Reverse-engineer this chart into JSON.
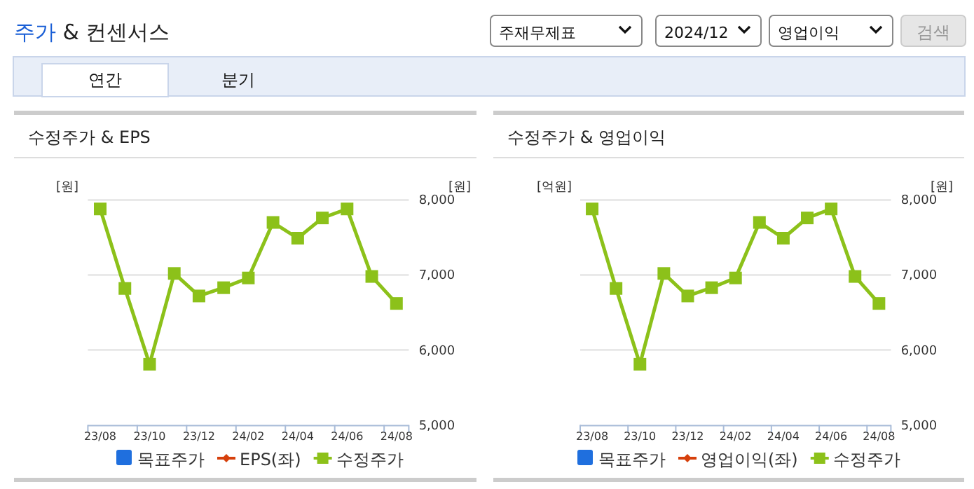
{
  "chart_data": [
    {
      "type": "other",
      "title": "주가 & 컨센서스",
      "annotations": [
        "주재무제표",
        "2024/12",
        "영업이익",
        "검색",
        "연간",
        "분기"
      ]
    },
    {
      "type": "line",
      "title": "수정주가 & EPS",
      "ylabel": "[원]",
      "y2label": "[원]",
      "categories": [
        "23/08",
        null,
        "23/10",
        null,
        "23/12",
        null,
        "24/02",
        null,
        "24/04",
        null,
        "24/06",
        null,
        "24/08"
      ],
      "y2lim": [
        5000,
        8000
      ],
      "y2ticks": [
        {
          "value": 5000,
          "label": "5,000"
        },
        {
          "value": 6000,
          "label": "6,000"
        },
        {
          "value": 7000,
          "label": "7,000"
        },
        {
          "value": 8000,
          "label": "8,000"
        }
      ],
      "grid": true,
      "legend": "bottom",
      "marker": "square",
      "series": [
        {
          "name": "목표주가",
          "type": "bar",
          "color": "#1f6fde",
          "values": [
            null,
            null,
            null,
            null,
            null,
            null,
            null,
            null,
            null,
            null,
            null,
            null,
            null
          ]
        },
        {
          "name": "EPS(좌)",
          "type": "line",
          "color": "#d6400c",
          "values": [
            null,
            null,
            null,
            null,
            null,
            null,
            null,
            null,
            null,
            null,
            null,
            null,
            null
          ]
        },
        {
          "name": "수정주가",
          "type": "line",
          "axis": "y2",
          "color": "#8cc11a",
          "values": [
            7880,
            6820,
            5810,
            7020,
            6720,
            6830,
            6960,
            7700,
            7490,
            7760,
            7880,
            6980,
            6620
          ]
        }
      ]
    },
    {
      "type": "line",
      "title": "수정주가 & 영업이익",
      "ylabel": "[억원]",
      "y2label": "[원]",
      "categories": [
        "23/08",
        null,
        "23/10",
        null,
        "23/12",
        null,
        "24/02",
        null,
        "24/04",
        null,
        "24/06",
        null,
        "24/08"
      ],
      "y2lim": [
        5000,
        8000
      ],
      "y2ticks": [
        {
          "value": 5000,
          "label": "5,000"
        },
        {
          "value": 6000,
          "label": "6,000"
        },
        {
          "value": 7000,
          "label": "7,000"
        },
        {
          "value": 8000,
          "label": "8,000"
        }
      ],
      "grid": true,
      "legend": "bottom",
      "marker": "square",
      "series": [
        {
          "name": "목표주가",
          "type": "bar",
          "color": "#1f6fde",
          "values": [
            null,
            null,
            null,
            null,
            null,
            null,
            null,
            null,
            null,
            null,
            null,
            null,
            null
          ]
        },
        {
          "name": "영업이익(좌)",
          "type": "line",
          "color": "#d6400c",
          "values": [
            null,
            null,
            null,
            null,
            null,
            null,
            null,
            null,
            null,
            null,
            null,
            null,
            null
          ]
        },
        {
          "name": "수정주가",
          "type": "line",
          "axis": "y2",
          "color": "#8cc11a",
          "values": [
            7880,
            6820,
            5810,
            7020,
            6720,
            6830,
            6960,
            7700,
            7490,
            7760,
            7880,
            6980,
            6620
          ]
        }
      ]
    }
  ]
}
